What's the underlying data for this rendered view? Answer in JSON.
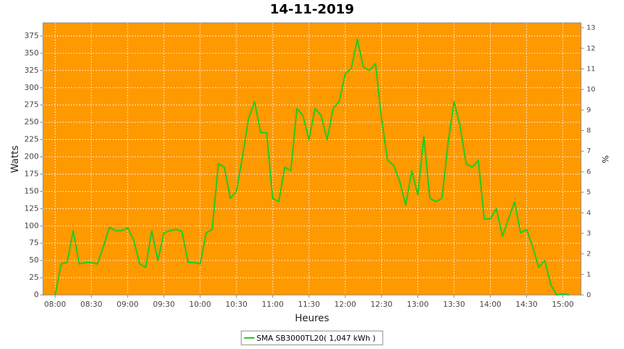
{
  "chart_data": {
    "type": "line",
    "title": "14-11-2019",
    "x_label": "Heures",
    "y_label": "Watts",
    "y2_label": "%",
    "x": [
      "08:00",
      "08:05",
      "08:10",
      "08:15",
      "08:20",
      "08:25",
      "08:30",
      "08:35",
      "08:40",
      "08:45",
      "08:50",
      "08:55",
      "09:00",
      "09:05",
      "09:10",
      "09:15",
      "09:20",
      "09:25",
      "09:30",
      "09:35",
      "09:40",
      "09:45",
      "09:50",
      "09:55",
      "10:00",
      "10:05",
      "10:10",
      "10:15",
      "10:20",
      "10:25",
      "10:30",
      "10:35",
      "10:40",
      "10:45",
      "10:50",
      "10:55",
      "11:00",
      "11:05",
      "11:10",
      "11:15",
      "11:20",
      "11:25",
      "11:30",
      "11:35",
      "11:40",
      "11:45",
      "11:50",
      "11:55",
      "12:00",
      "12:05",
      "12:10",
      "12:15",
      "12:20",
      "12:25",
      "12:30",
      "12:35",
      "12:40",
      "12:45",
      "12:50",
      "12:55",
      "13:00",
      "13:05",
      "13:10",
      "13:15",
      "13:20",
      "13:25",
      "13:30",
      "13:35",
      "13:40",
      "13:45",
      "13:50",
      "13:55",
      "14:00",
      "14:05",
      "14:10",
      "14:15",
      "14:20",
      "14:25",
      "14:30",
      "14:35",
      "14:40",
      "14:45",
      "14:50",
      "14:55",
      "15:00",
      "15:05"
    ],
    "series": [
      {
        "name": "SMA SB3000TL20( 1,047 kWh )",
        "color": "#1ecb1e",
        "values": [
          0,
          45,
          47,
          93,
          45,
          47,
          47,
          45,
          70,
          98,
          93,
          93,
          97,
          80,
          45,
          40,
          93,
          50,
          90,
          93,
          95,
          92,
          47,
          47,
          45,
          90,
          95,
          190,
          185,
          140,
          150,
          200,
          255,
          280,
          235,
          235,
          140,
          135,
          185,
          180,
          270,
          260,
          225,
          270,
          260,
          225,
          270,
          280,
          320,
          328,
          370,
          330,
          325,
          335,
          255,
          195,
          188,
          165,
          130,
          180,
          145,
          230,
          140,
          135,
          140,
          220,
          280,
          245,
          190,
          185,
          195,
          110,
          110,
          125,
          85,
          110,
          135,
          90,
          95,
          70,
          40,
          50,
          15,
          0,
          2,
          0
        ]
      }
    ],
    "xlim": [
      "07:50",
      "15:15"
    ],
    "xticks": [
      "08:00",
      "08:30",
      "09:00",
      "09:30",
      "10:00",
      "10:30",
      "11:00",
      "11:30",
      "12:00",
      "12:30",
      "13:00",
      "13:30",
      "14:00",
      "14:30",
      "15:00"
    ],
    "ylim": [
      0,
      394
    ],
    "yticks": [
      0,
      25,
      50,
      75,
      100,
      125,
      150,
      175,
      200,
      225,
      250,
      275,
      300,
      325,
      350,
      375
    ],
    "y2lim": [
      0,
      13.24
    ],
    "y2ticks": [
      0,
      1,
      2,
      3,
      4,
      5,
      6,
      7,
      8,
      9,
      10,
      11,
      12,
      13
    ],
    "grid": true,
    "background": "#ff9900"
  }
}
